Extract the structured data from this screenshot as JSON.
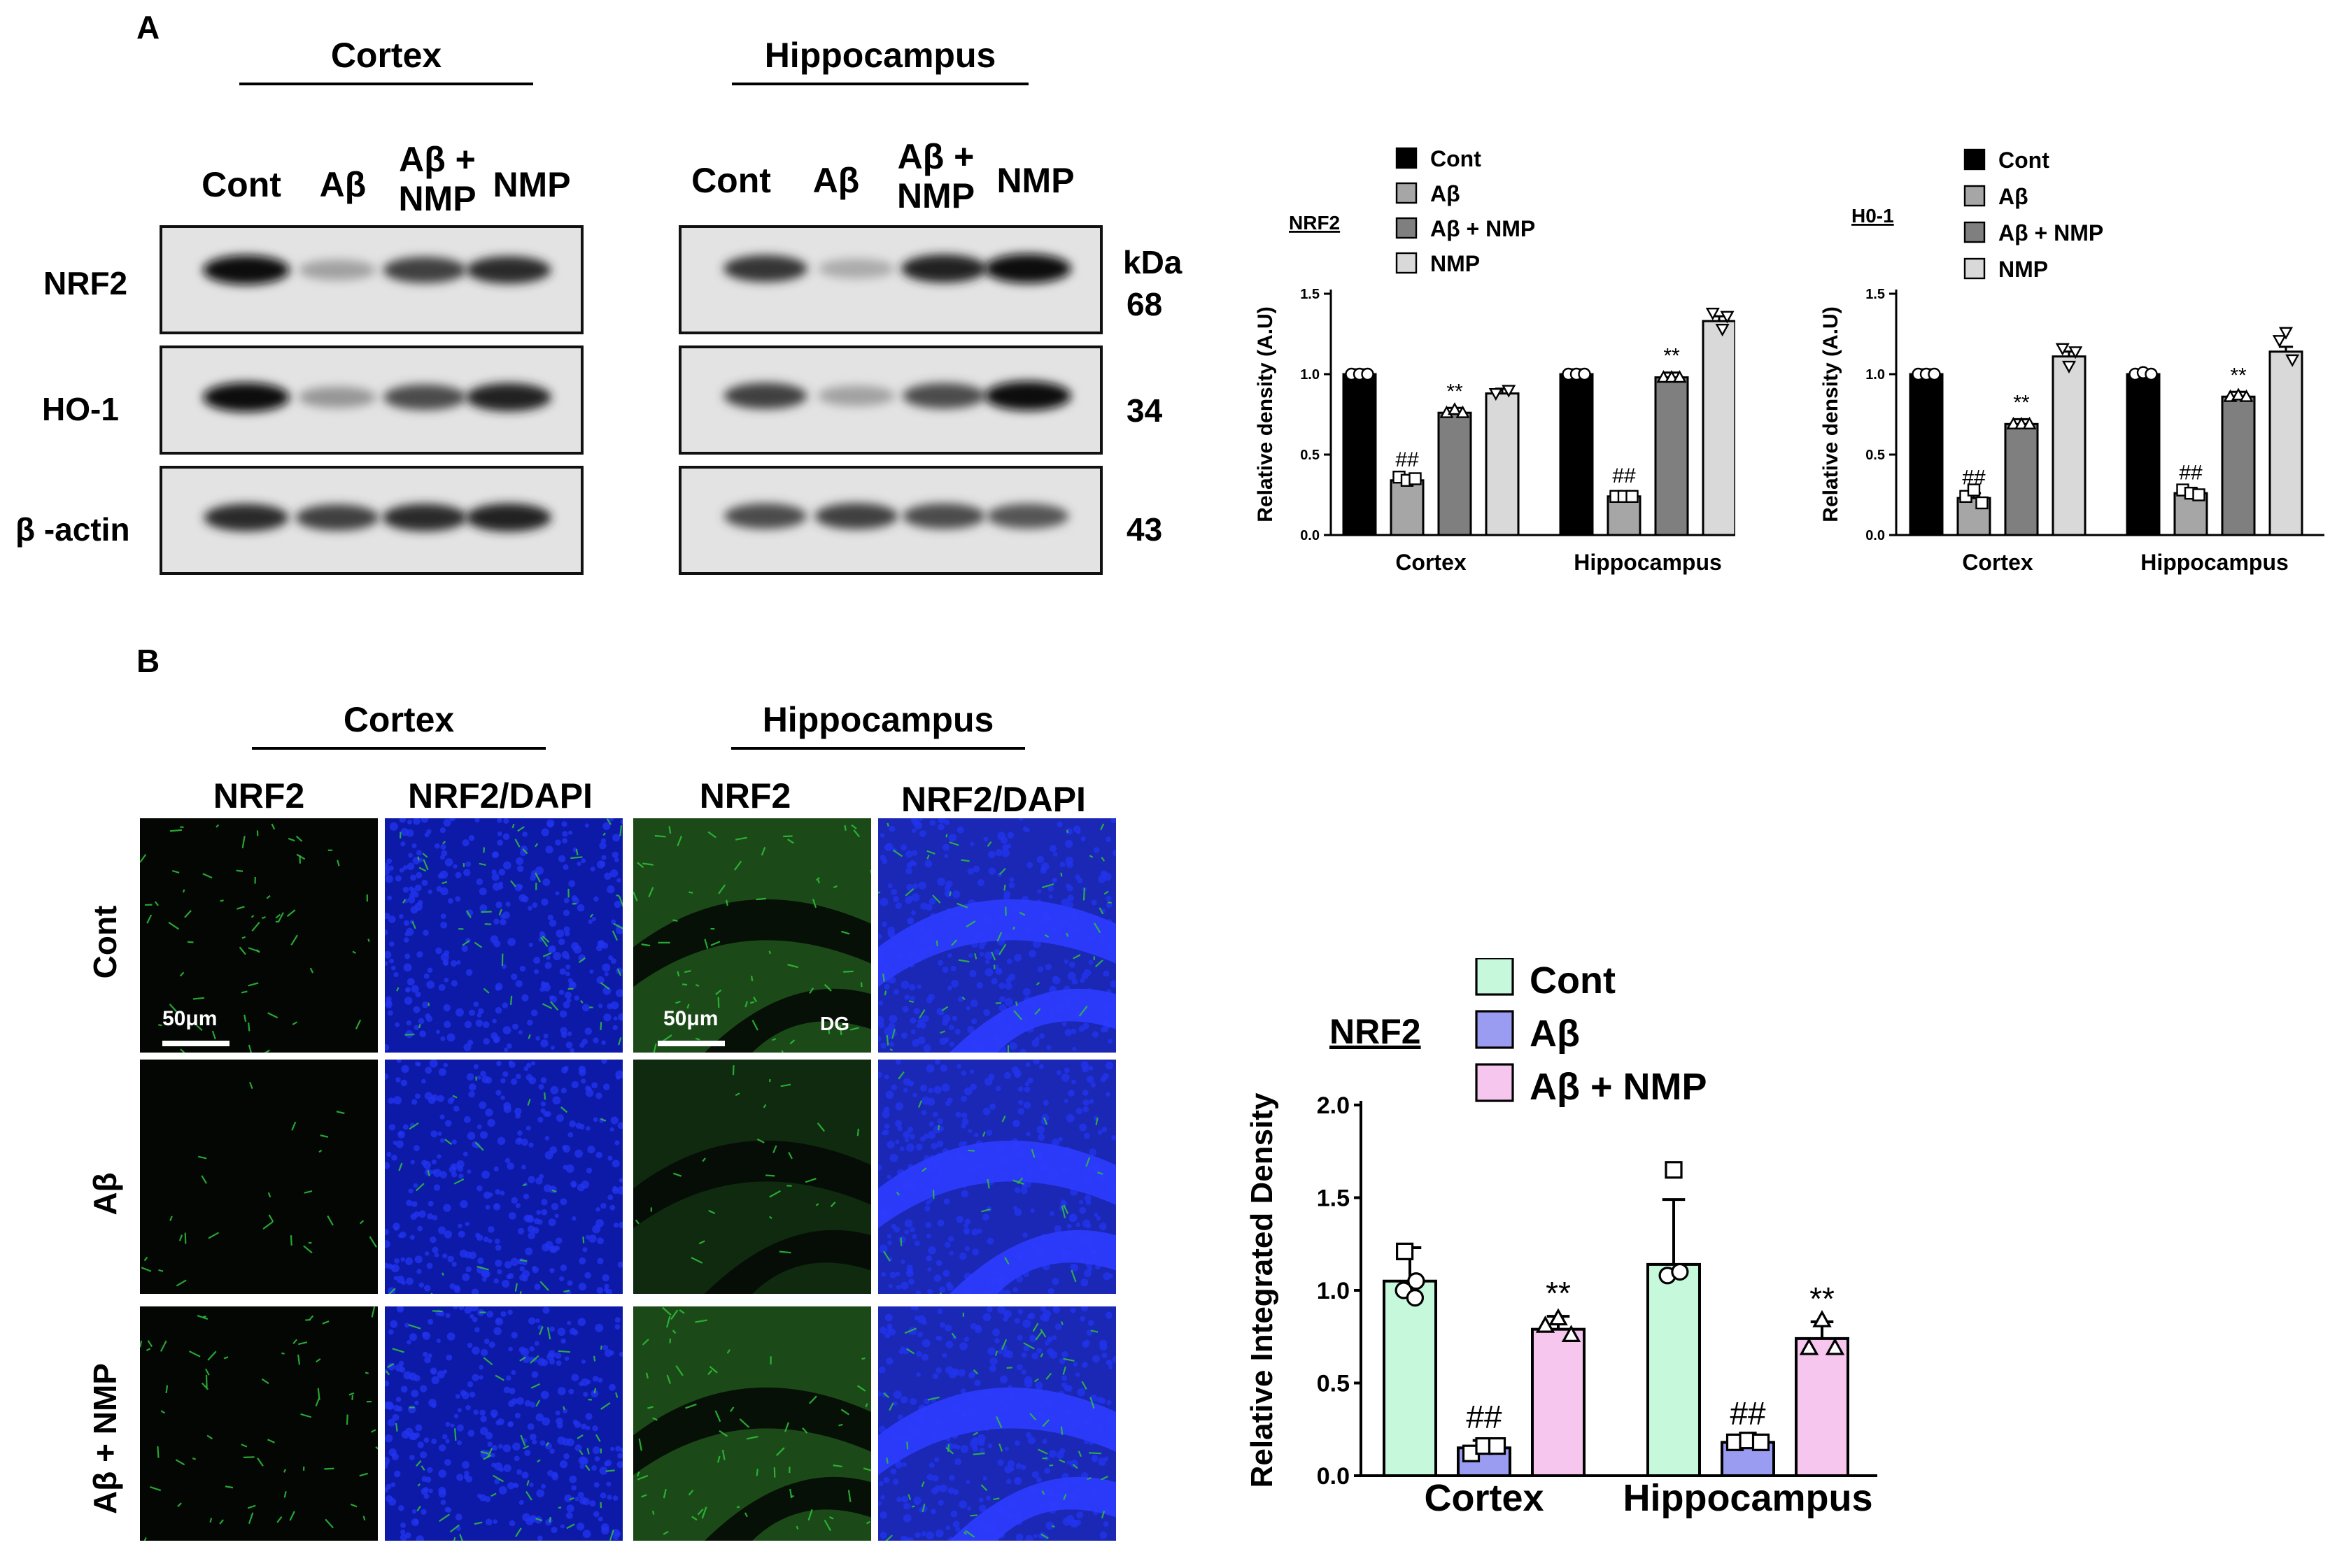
{
  "panelA": {
    "letter": "A",
    "region_headers": [
      "Cortex",
      "Hippocampus"
    ],
    "lanes_cortex": [
      "Cont",
      "Aβ",
      "Aβ +\nNMP",
      "NMP"
    ],
    "lanes_hippo": [
      "Cont",
      "Aβ",
      "Aβ +\nNMP",
      "NMP"
    ],
    "rows": [
      "NRF2",
      "HO-1",
      "β -actin"
    ],
    "kda_label": "kDa",
    "kda_values": [
      "68",
      "34",
      "43"
    ],
    "band_intensity": {
      "nrf2_cortex": [
        1.0,
        0.3,
        0.75,
        0.85
      ],
      "nrf2_hippo": [
        0.8,
        0.25,
        0.9,
        1.0
      ],
      "ho1_cortex": [
        1.0,
        0.35,
        0.7,
        0.9
      ],
      "ho1_hippo": [
        0.75,
        0.3,
        0.7,
        1.0
      ],
      "actin_cortex": [
        0.85,
        0.75,
        0.85,
        0.9
      ],
      "actin_hippo": [
        0.7,
        0.75,
        0.7,
        0.65
      ]
    }
  },
  "panelB": {
    "letter": "B",
    "region_headers": [
      "Cortex",
      "Hippocampus"
    ],
    "col_labels": [
      "NRF2",
      "NRF2/DAPI",
      "NRF2",
      "NRF2/DAPI"
    ],
    "row_labels": [
      "Cont",
      "Aβ",
      "Aβ + NMP"
    ],
    "scale_label": "50μm",
    "dg_label": "DG"
  },
  "chart_data": [
    {
      "type": "bar",
      "title": "NRF2",
      "ylabel": "Relative density (A.U)",
      "ylim": [
        0,
        1.5
      ],
      "yticks": [
        "0.0",
        "0.5",
        "1.0",
        "1.5"
      ],
      "categories": [
        "Cortex",
        "Hippocampus"
      ],
      "series": [
        {
          "name": "Cont",
          "values": [
            1.0,
            1.0
          ],
          "color": "#000000",
          "marker": "circle",
          "label": [
            "",
            ""
          ]
        },
        {
          "name": "Aβ",
          "values": [
            0.34,
            0.24
          ],
          "color": "#a6a6a6",
          "marker": "square",
          "label": [
            "##",
            "##"
          ]
        },
        {
          "name": "Aβ + NMP",
          "values": [
            0.76,
            0.98
          ],
          "color": "#7f7f7f",
          "marker": "triangle",
          "label": [
            "**",
            "**"
          ]
        },
        {
          "name": "NMP",
          "values": [
            0.88,
            1.33
          ],
          "color": "#d9d9d9",
          "marker": "triangle-down",
          "label": [
            "",
            ""
          ]
        }
      ]
    },
    {
      "type": "bar",
      "title": "H0-1",
      "ylabel": "Relative density (A.U)",
      "ylim": [
        0,
        1.5
      ],
      "yticks": [
        "0.0",
        "0.5",
        "1.0",
        "1.5"
      ],
      "categories": [
        "Cortex",
        "Hippocampus"
      ],
      "series": [
        {
          "name": "Cont",
          "values": [
            1.0,
            1.0
          ],
          "color": "#000000",
          "marker": "circle",
          "label": [
            "",
            ""
          ]
        },
        {
          "name": "Aβ",
          "values": [
            0.23,
            0.26
          ],
          "color": "#a6a6a6",
          "marker": "square",
          "label": [
            "##",
            "##"
          ]
        },
        {
          "name": "Aβ + NMP",
          "values": [
            0.69,
            0.86
          ],
          "color": "#7f7f7f",
          "marker": "triangle",
          "label": [
            "**",
            "**"
          ]
        },
        {
          "name": "NMP",
          "values": [
            1.11,
            1.14
          ],
          "color": "#d9d9d9",
          "marker": "triangle-down",
          "label": [
            "",
            ""
          ]
        }
      ]
    },
    {
      "type": "bar",
      "title": "NRF2",
      "ylabel": "Relative Integrated Density",
      "ylim": [
        0,
        2.0
      ],
      "yticks": [
        "0.0",
        "0.5",
        "1.0",
        "1.5",
        "2.0"
      ],
      "categories": [
        "Cortex",
        "Hippocampus"
      ],
      "series": [
        {
          "name": "Cont",
          "values": [
            1.05,
            1.14
          ],
          "error": [
            0.18,
            0.35
          ],
          "color": "#c6f8db",
          "marker": "square|circle",
          "label": [
            "",
            ""
          ]
        },
        {
          "name": "Aβ",
          "values": [
            0.15,
            0.18
          ],
          "error": [
            0.04,
            0.03
          ],
          "color": "#9a9cf2",
          "marker": "square",
          "label": [
            "##",
            "##"
          ]
        },
        {
          "name": "Aβ + NMP",
          "values": [
            0.79,
            0.74
          ],
          "error": [
            0.07,
            0.09
          ],
          "color": "#f7c6ef",
          "marker": "triangle",
          "label": [
            "**",
            "**"
          ]
        }
      ]
    }
  ],
  "colors": {
    "micro_green": "#2ec23a",
    "micro_blue": "#1e2bd8",
    "blot_bg": "#e3e3e3"
  }
}
